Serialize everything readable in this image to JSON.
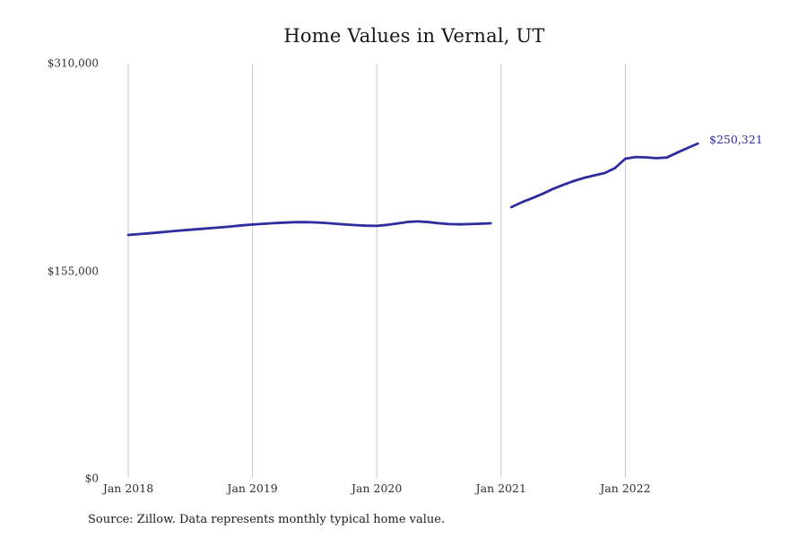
{
  "title": "Home Values in Vernal, UT",
  "source_note": "Source: Zillow. Data represents monthly typical home value.",
  "colors": {
    "line": "#2e2d9e",
    "grid": "#c9c9c9",
    "tick_text": "#2f2f2f",
    "end_label_text": "#2e2d9e"
  },
  "chart_data": {
    "type": "line",
    "title": "Home Values in Vernal, UT",
    "xlabel": "",
    "ylabel": "",
    "ylim": [
      0,
      310000
    ],
    "grid": "vertical-only",
    "legend": "none",
    "end_label": "$250,321",
    "y_ticks": [
      {
        "value": 0,
        "label": "$0"
      },
      {
        "value": 155000,
        "label": "$155,000"
      },
      {
        "value": 310000,
        "label": "$310,000"
      }
    ],
    "x_tick_labels": [
      "Jan 2018",
      "Jan 2019",
      "Jan 2020",
      "Jan 2021",
      "Jan 2022"
    ],
    "note": "gap in series at 2021-01 (no data drawn)",
    "months": [
      "2018-01",
      "2018-02",
      "2018-03",
      "2018-04",
      "2018-05",
      "2018-06",
      "2018-07",
      "2018-08",
      "2018-09",
      "2018-10",
      "2018-11",
      "2018-12",
      "2019-01",
      "2019-02",
      "2019-03",
      "2019-04",
      "2019-05",
      "2019-06",
      "2019-07",
      "2019-08",
      "2019-09",
      "2019-10",
      "2019-11",
      "2019-12",
      "2020-01",
      "2020-02",
      "2020-03",
      "2020-04",
      "2020-05",
      "2020-06",
      "2020-07",
      "2020-08",
      "2020-09",
      "2020-10",
      "2020-11",
      "2020-12",
      "2021-01",
      "2021-02",
      "2021-03",
      "2021-04",
      "2021-05",
      "2021-06",
      "2021-07",
      "2021-08",
      "2021-09",
      "2021-10",
      "2021-11",
      "2021-12",
      "2022-01",
      "2022-02",
      "2022-03",
      "2022-04",
      "2022-05",
      "2022-06",
      "2022-07",
      "2022-08"
    ],
    "series": [
      {
        "name": "Typical home value",
        "values": [
          182100,
          182700,
          183300,
          184000,
          184700,
          185400,
          186000,
          186600,
          187200,
          187800,
          188500,
          189300,
          189900,
          190400,
          190900,
          191300,
          191600,
          191700,
          191500,
          191100,
          190500,
          189900,
          189400,
          189000,
          188900,
          189600,
          190700,
          191800,
          192200,
          191700,
          190800,
          190200,
          190000,
          190200,
          190500,
          190800,
          null,
          202900,
          206500,
          209500,
          212800,
          216400,
          219500,
          222300,
          224700,
          226600,
          228300,
          232000,
          239000,
          240300,
          240000,
          239400,
          239900,
          243500,
          247000,
          250321
        ]
      }
    ]
  }
}
